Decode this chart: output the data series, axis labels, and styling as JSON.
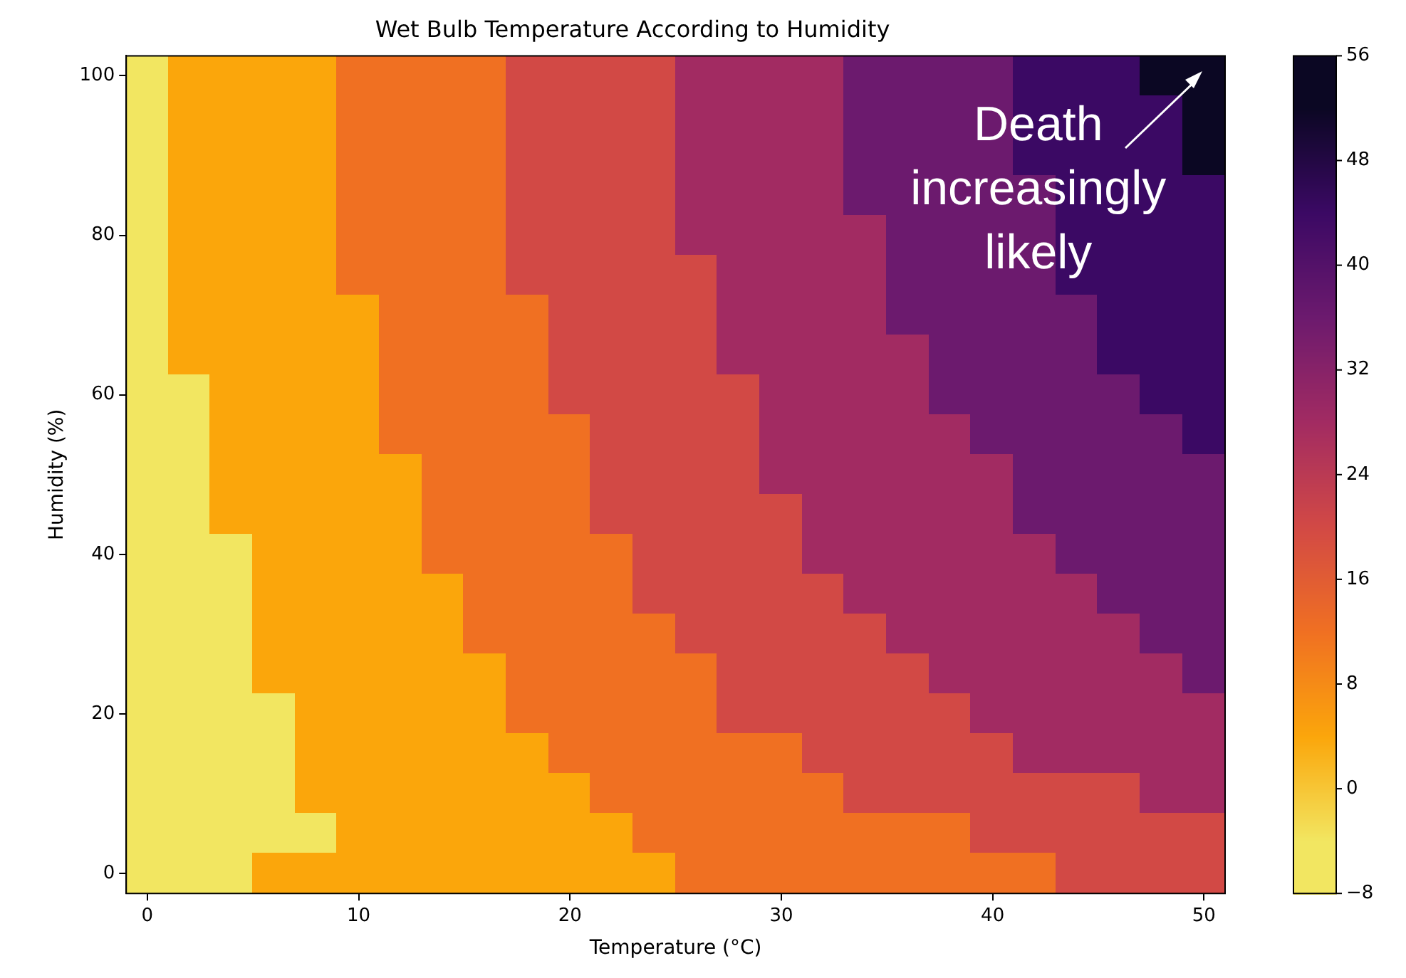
{
  "chart_data": {
    "type": "heatmap",
    "title": "Wet Bulb Temperature According to Humidity",
    "xlabel": "Temperature (°C)",
    "ylabel": "Humidity (%)",
    "annotations": [
      "Death increasingly likely"
    ],
    "categories": [
      "0",
      null,
      null,
      null,
      null,
      "10",
      null,
      null,
      null,
      null,
      "20",
      null,
      null,
      null,
      null,
      "30",
      null,
      null,
      null,
      null,
      "40",
      null,
      null,
      null,
      null,
      "50"
    ],
    "y_categories": [
      "100",
      null,
      null,
      null,
      "80",
      null,
      null,
      null,
      "60",
      null,
      null,
      null,
      "40",
      null,
      null,
      null,
      "20",
      null,
      null,
      null,
      "0"
    ],
    "cells": [
      [
        -4,
        4,
        4,
        4,
        4,
        12,
        12,
        12,
        12,
        20,
        20,
        20,
        20,
        28,
        28,
        28,
        28,
        36,
        36,
        36,
        36,
        44,
        44,
        44,
        52,
        52
      ],
      [
        -4,
        4,
        4,
        4,
        4,
        12,
        12,
        12,
        12,
        20,
        20,
        20,
        20,
        28,
        28,
        28,
        28,
        36,
        36,
        36,
        36,
        44,
        44,
        44,
        44,
        52
      ],
      [
        -4,
        4,
        4,
        4,
        4,
        12,
        12,
        12,
        12,
        20,
        20,
        20,
        20,
        28,
        28,
        28,
        28,
        36,
        36,
        36,
        36,
        44,
        44,
        44,
        44,
        52
      ],
      [
        -4,
        4,
        4,
        4,
        4,
        12,
        12,
        12,
        12,
        20,
        20,
        20,
        20,
        28,
        28,
        28,
        28,
        36,
        36,
        36,
        36,
        36,
        44,
        44,
        44,
        44
      ],
      [
        -4,
        4,
        4,
        4,
        4,
        12,
        12,
        12,
        12,
        20,
        20,
        20,
        20,
        28,
        28,
        28,
        28,
        28,
        36,
        36,
        36,
        36,
        44,
        44,
        44,
        44
      ],
      [
        -4,
        4,
        4,
        4,
        4,
        12,
        12,
        12,
        12,
        20,
        20,
        20,
        20,
        20,
        28,
        28,
        28,
        28,
        36,
        36,
        36,
        36,
        44,
        44,
        44,
        44
      ],
      [
        -4,
        4,
        4,
        4,
        4,
        4,
        12,
        12,
        12,
        12,
        20,
        20,
        20,
        20,
        28,
        28,
        28,
        28,
        36,
        36,
        36,
        36,
        36,
        44,
        44,
        44
      ],
      [
        -4,
        4,
        4,
        4,
        4,
        4,
        12,
        12,
        12,
        12,
        20,
        20,
        20,
        20,
        28,
        28,
        28,
        28,
        28,
        36,
        36,
        36,
        36,
        44,
        44,
        44
      ],
      [
        -4,
        -4,
        4,
        4,
        4,
        4,
        12,
        12,
        12,
        12,
        20,
        20,
        20,
        20,
        20,
        28,
        28,
        28,
        28,
        36,
        36,
        36,
        36,
        36,
        44,
        44
      ],
      [
        -4,
        -4,
        4,
        4,
        4,
        4,
        12,
        12,
        12,
        12,
        12,
        20,
        20,
        20,
        20,
        28,
        28,
        28,
        28,
        28,
        36,
        36,
        36,
        36,
        36,
        44
      ],
      [
        -4,
        -4,
        4,
        4,
        4,
        4,
        4,
        12,
        12,
        12,
        12,
        20,
        20,
        20,
        20,
        28,
        28,
        28,
        28,
        28,
        28,
        36,
        36,
        36,
        36,
        36
      ],
      [
        -4,
        -4,
        4,
        4,
        4,
        4,
        4,
        12,
        12,
        12,
        12,
        20,
        20,
        20,
        20,
        20,
        28,
        28,
        28,
        28,
        28,
        36,
        36,
        36,
        36,
        36
      ],
      [
        -4,
        -4,
        -4,
        4,
        4,
        4,
        4,
        12,
        12,
        12,
        12,
        12,
        20,
        20,
        20,
        20,
        28,
        28,
        28,
        28,
        28,
        28,
        36,
        36,
        36,
        36
      ],
      [
        -4,
        -4,
        -4,
        4,
        4,
        4,
        4,
        4,
        12,
        12,
        12,
        12,
        20,
        20,
        20,
        20,
        20,
        28,
        28,
        28,
        28,
        28,
        28,
        36,
        36,
        36
      ],
      [
        -4,
        -4,
        -4,
        4,
        4,
        4,
        4,
        4,
        12,
        12,
        12,
        12,
        12,
        20,
        20,
        20,
        20,
        20,
        28,
        28,
        28,
        28,
        28,
        28,
        36,
        36
      ],
      [
        -4,
        -4,
        -4,
        4,
        4,
        4,
        4,
        4,
        4,
        12,
        12,
        12,
        12,
        12,
        20,
        20,
        20,
        20,
        20,
        28,
        28,
        28,
        28,
        28,
        28,
        36
      ],
      [
        -4,
        -4,
        -4,
        -4,
        4,
        4,
        4,
        4,
        4,
        12,
        12,
        12,
        12,
        12,
        20,
        20,
        20,
        20,
        20,
        20,
        28,
        28,
        28,
        28,
        28,
        28
      ],
      [
        -4,
        -4,
        -4,
        -4,
        4,
        4,
        4,
        4,
        4,
        4,
        12,
        12,
        12,
        12,
        12,
        12,
        20,
        20,
        20,
        20,
        20,
        28,
        28,
        28,
        28,
        28
      ],
      [
        -4,
        -4,
        -4,
        -4,
        4,
        4,
        4,
        4,
        4,
        4,
        4,
        12,
        12,
        12,
        12,
        12,
        12,
        20,
        20,
        20,
        20,
        20,
        20,
        20,
        28,
        28
      ],
      [
        -4,
        -4,
        -4,
        -4,
        -4,
        4,
        4,
        4,
        4,
        4,
        4,
        4,
        12,
        12,
        12,
        12,
        12,
        12,
        12,
        12,
        20,
        20,
        20,
        20,
        20,
        20
      ],
      [
        -4,
        -4,
        -4,
        4,
        4,
        4,
        4,
        4,
        4,
        4,
        4,
        4,
        4,
        12,
        12,
        12,
        12,
        12,
        12,
        12,
        12,
        12,
        20,
        20,
        20,
        20
      ]
    ],
    "colors": [
      "#f2e661",
      "#fba60b",
      "#f07022",
      "#d24945",
      "#a22b62",
      "#6c1a6e",
      "#3b0964",
      "#0b0723"
    ],
    "clim": [
      -8,
      56
    ],
    "cticks": [
      {
        "value": -8,
        "label": "−8"
      },
      0,
      8,
      16,
      24,
      32,
      40,
      48,
      56
    ]
  }
}
